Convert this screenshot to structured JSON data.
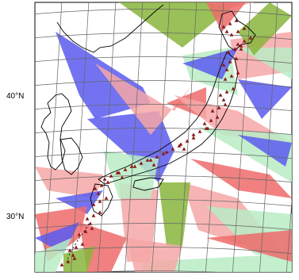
{
  "map": {
    "latitude_labels": [
      "40°N",
      "30°N"
    ],
    "sector_colors": {
      "blue": "#5b5bf0",
      "green": "#88b53c",
      "light_green": "#b9ecc4",
      "pink": "#f6a7a7",
      "red": "#ee6b6b"
    },
    "station_marker_color": "#8b1a1a"
  }
}
